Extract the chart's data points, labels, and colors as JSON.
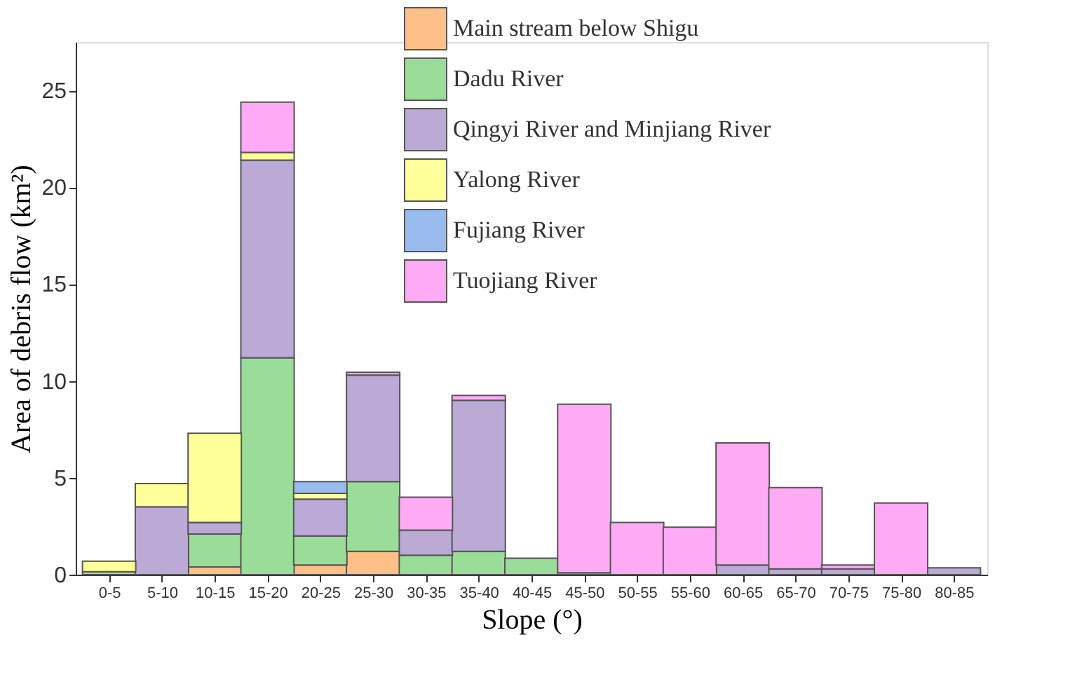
{
  "chart_data": {
    "type": "bar",
    "stacked": true,
    "xlabel": "Slope (°)",
    "ylabel": "Area of debris flow (km²)",
    "categories": [
      "0-5",
      "5-10",
      "10-15",
      "15-20",
      "20-25",
      "25-30",
      "30-35",
      "35-40",
      "40-45",
      "45-50",
      "50-55",
      "55-60",
      "60-65",
      "65-70",
      "70-75",
      "75-80",
      "80-85"
    ],
    "series": [
      {
        "name": "Main stream below Shigu",
        "color": "#ffc088",
        "values": [
          null,
          null,
          0.4,
          null,
          0.5,
          1.2,
          null,
          null,
          null,
          null,
          null,
          null,
          null,
          null,
          null,
          null,
          null
        ]
      },
      {
        "name": "Dadu River",
        "color": "#99dd99",
        "values": [
          0.15,
          null,
          1.7,
          11.2,
          1.5,
          3.6,
          1.0,
          1.2,
          0.85,
          null,
          null,
          null,
          null,
          null,
          null,
          null,
          null
        ]
      },
      {
        "name": "Qingyi River and Minjiang River",
        "color": "#bba9d6",
        "values": [
          null,
          3.5,
          0.6,
          10.2,
          1.9,
          5.5,
          1.3,
          7.8,
          null,
          0.1,
          null,
          null,
          0.5,
          0.3,
          0.3,
          null,
          0.35
        ]
      },
      {
        "name": "Yalong River",
        "color": "#ffff99",
        "values": [
          0.55,
          1.2,
          4.6,
          0.4,
          0.3,
          null,
          null,
          null,
          null,
          null,
          null,
          null,
          null,
          null,
          null,
          null,
          null
        ]
      },
      {
        "name": "Fujiang River",
        "color": "#99bbee",
        "values": [
          null,
          null,
          null,
          null,
          0.6,
          null,
          null,
          null,
          null,
          null,
          null,
          null,
          null,
          null,
          null,
          null,
          null
        ]
      },
      {
        "name": "Tuojiang River",
        "color": "#ffaaf5",
        "values": [
          null,
          null,
          null,
          2.6,
          null,
          0.15,
          1.7,
          0.25,
          null,
          8.7,
          2.7,
          2.45,
          6.3,
          4.2,
          0.2,
          3.7,
          null
        ]
      }
    ],
    "ylim": [
      0,
      27.5
    ],
    "yticks": [
      0,
      5,
      10,
      15,
      20,
      25
    ],
    "grid": false,
    "legend": "top"
  }
}
